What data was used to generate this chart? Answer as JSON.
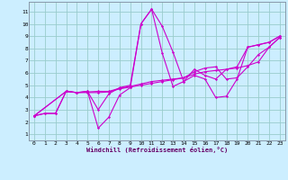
{
  "background_color": "#cceeff",
  "line_color": "#cc00cc",
  "grid_color": "#99cccc",
  "xlabel": "Windchill (Refroidissement éolien,°C)",
  "ylabel_ticks": [
    1,
    2,
    3,
    4,
    5,
    6,
    7,
    8,
    9,
    10,
    11
  ],
  "xlabel_ticks": [
    0,
    1,
    2,
    3,
    4,
    5,
    6,
    7,
    8,
    9,
    10,
    11,
    12,
    13,
    14,
    15,
    16,
    17,
    18,
    19,
    20,
    21,
    22,
    23
  ],
  "xlim": [
    -0.5,
    23.5
  ],
  "ylim": [
    0.5,
    11.8
  ],
  "lines": [
    {
      "x": [
        0,
        1,
        2,
        3,
        4,
        5,
        6,
        7,
        8,
        9,
        10,
        11,
        12,
        13,
        14,
        15,
        16,
        17,
        18,
        19,
        20,
        21,
        22,
        23
      ],
      "y": [
        2.5,
        2.7,
        2.7,
        4.5,
        4.4,
        4.5,
        3.0,
        4.3,
        4.8,
        5.0,
        10.0,
        11.2,
        9.8,
        7.7,
        5.3,
        6.3,
        5.8,
        5.5,
        6.3,
        6.5,
        8.1,
        8.3,
        8.5,
        9.0
      ]
    },
    {
      "x": [
        0,
        1,
        2,
        3,
        4,
        5,
        6,
        7,
        8,
        9,
        10,
        11,
        12,
        13,
        14,
        15,
        16,
        17,
        18,
        19,
        20,
        21,
        22,
        23
      ],
      "y": [
        2.5,
        2.7,
        2.7,
        4.5,
        4.4,
        4.5,
        1.5,
        2.4,
        4.2,
        4.8,
        10.0,
        11.2,
        7.6,
        4.9,
        5.3,
        5.8,
        5.5,
        4.0,
        4.1,
        5.5,
        8.1,
        8.3,
        8.5,
        9.0
      ]
    },
    {
      "x": [
        0,
        3,
        4,
        5,
        6,
        7,
        8,
        9,
        10,
        11,
        12,
        13,
        14,
        15,
        16,
        17,
        18,
        19,
        20,
        21,
        22,
        23
      ],
      "y": [
        2.5,
        4.5,
        4.4,
        4.45,
        4.5,
        4.5,
        4.75,
        4.9,
        5.1,
        5.3,
        5.4,
        5.5,
        5.6,
        5.9,
        6.1,
        6.2,
        6.3,
        6.4,
        6.6,
        6.9,
        8.1,
        8.9
      ]
    },
    {
      "x": [
        0,
        3,
        4,
        5,
        6,
        7,
        8,
        9,
        10,
        11,
        12,
        13,
        14,
        15,
        16,
        17,
        18,
        19,
        20,
        21,
        22,
        23
      ],
      "y": [
        2.5,
        4.5,
        4.4,
        4.4,
        4.4,
        4.45,
        4.7,
        4.85,
        5.0,
        5.15,
        5.3,
        5.45,
        5.6,
        6.1,
        6.4,
        6.5,
        5.5,
        5.6,
        6.5,
        7.5,
        8.1,
        8.9
      ]
    }
  ]
}
